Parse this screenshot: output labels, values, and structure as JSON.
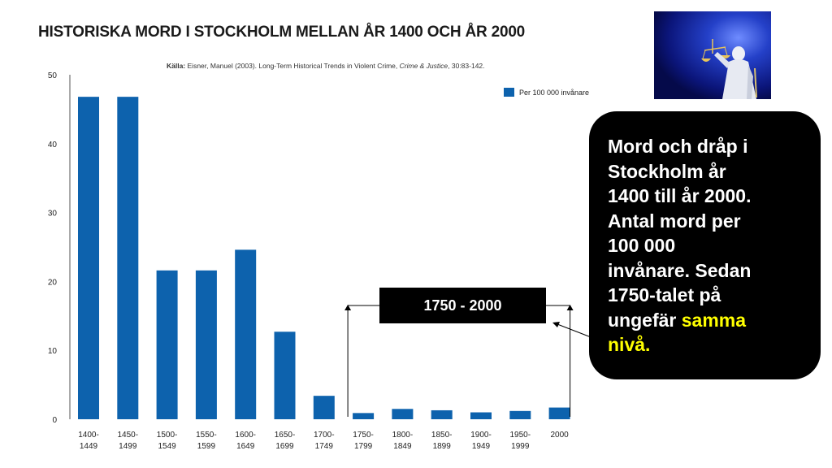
{
  "title": "HISTORISKA MORD I STOCKHOLM MELLAN ÅR 1400 OCH ÅR 2000",
  "source": {
    "label": "Källa:",
    "text": " Eisner, Manuel (2003). Long-Term Historical Trends in Violent Crime, ",
    "journal": "Crime & Justice",
    "tail": ", 30:83-142."
  },
  "callout": {
    "text_main": "Mord och dråp i\nStockholm år\n1400 till år 2000.\nAntal mord per\n100 000\ninvånare. Sedan\n1750-talet på\nungefär ",
    "text_highlight": "samma\nnivå.",
    "highlight_color": "#ffff00"
  },
  "badge": {
    "label": "1750 - 2000"
  },
  "image": {
    "icon": "justitia-statue-photo"
  },
  "chart_data": {
    "type": "bar",
    "title": "HISTORISKA MORD I STOCKHOLM MELLAN ÅR 1400 OCH ÅR 2000",
    "xlabel": "",
    "ylabel": "",
    "ylim": [
      0,
      50
    ],
    "yticks": [
      0,
      10,
      20,
      30,
      40,
      50
    ],
    "grid": false,
    "legend_position": "top-right",
    "bar_color": "#0d62ad",
    "categories": [
      [
        "1400-",
        "1449"
      ],
      [
        "1450-",
        "1499"
      ],
      [
        "1500-",
        "1549"
      ],
      [
        "1550-",
        "1599"
      ],
      [
        "1600-",
        "1649"
      ],
      [
        "1650-",
        "1699"
      ],
      [
        "1700-",
        "1749"
      ],
      [
        "1750-",
        "1799"
      ],
      [
        "1800-",
        "1849"
      ],
      [
        "1850-",
        "1899"
      ],
      [
        "1900-",
        "1949"
      ],
      [
        "1950-",
        "1999"
      ],
      [
        "2000",
        ""
      ]
    ],
    "series": [
      {
        "name": "Per 100 000 invånare",
        "values": [
          46.8,
          46.8,
          21.6,
          21.6,
          24.6,
          12.7,
          3.4,
          0.9,
          1.5,
          1.3,
          1.0,
          1.2,
          1.7
        ]
      }
    ]
  }
}
